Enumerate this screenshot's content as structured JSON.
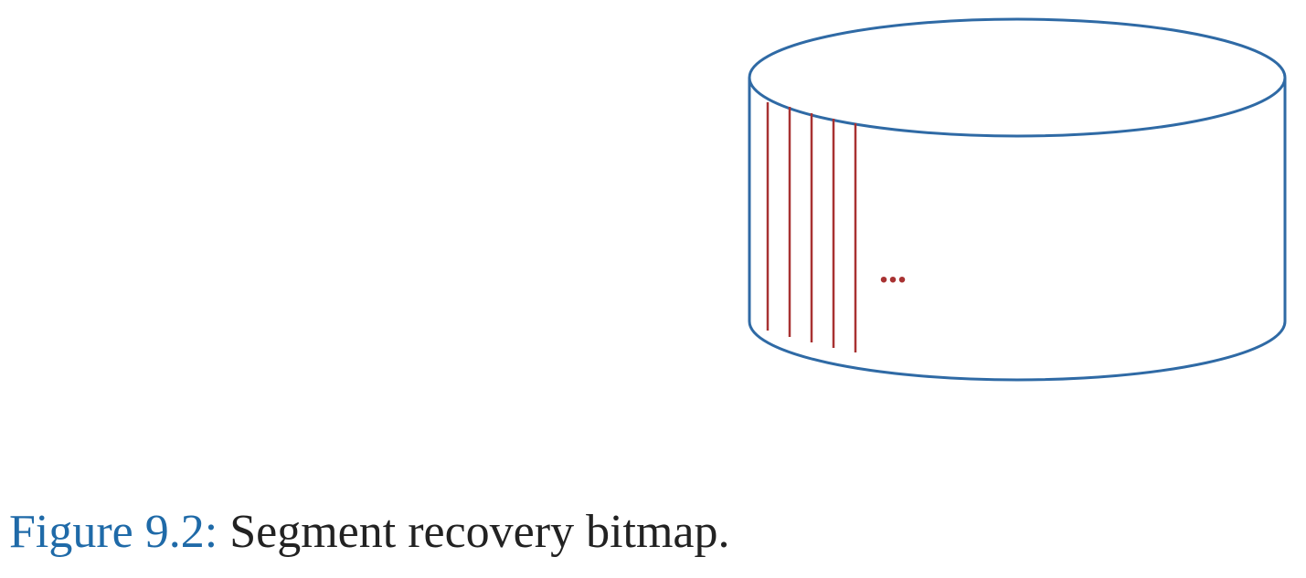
{
  "figure": {
    "caption_label": "Figure 9.2:",
    "caption_text": "Segment recovery bitmap.",
    "ellipsis": "...",
    "colors": {
      "cylinder_outline": "#2f6aa5",
      "segment_lines": "#a83232",
      "caption_label": "#1f6aa8",
      "caption_text": "#222222"
    }
  }
}
